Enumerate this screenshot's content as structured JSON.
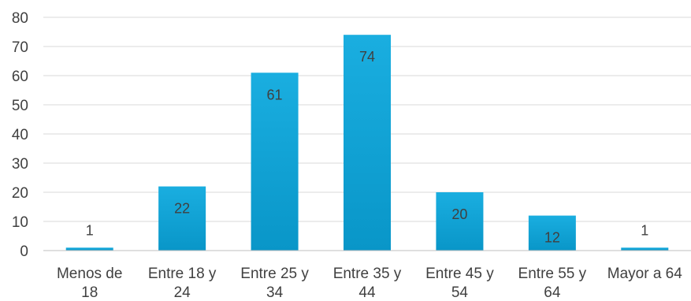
{
  "chart_data": {
    "type": "bar",
    "categories": [
      [
        "Menos de",
        "18"
      ],
      [
        "Entre 18 y",
        "24"
      ],
      [
        "Entre 25 y",
        "34"
      ],
      [
        "Entre 35 y",
        "44"
      ],
      [
        "Entre 45 y",
        "54"
      ],
      [
        "Entre 55 y",
        "64"
      ],
      [
        "Mayor a 64"
      ]
    ],
    "values": [
      1,
      22,
      61,
      74,
      20,
      12,
      1
    ],
    "data_labels": [
      "1",
      "22",
      "61",
      "74",
      "20",
      "12",
      "1"
    ],
    "y_ticks": [
      "0",
      "10",
      "20",
      "30",
      "40",
      "50",
      "60",
      "70",
      "80"
    ],
    "title": "",
    "xlabel": "",
    "ylabel": "",
    "ylim": [
      0,
      80
    ],
    "grid": true,
    "legend": "none",
    "bar_color": "#1aaee0",
    "bar_color_dark": "#0996c8"
  }
}
